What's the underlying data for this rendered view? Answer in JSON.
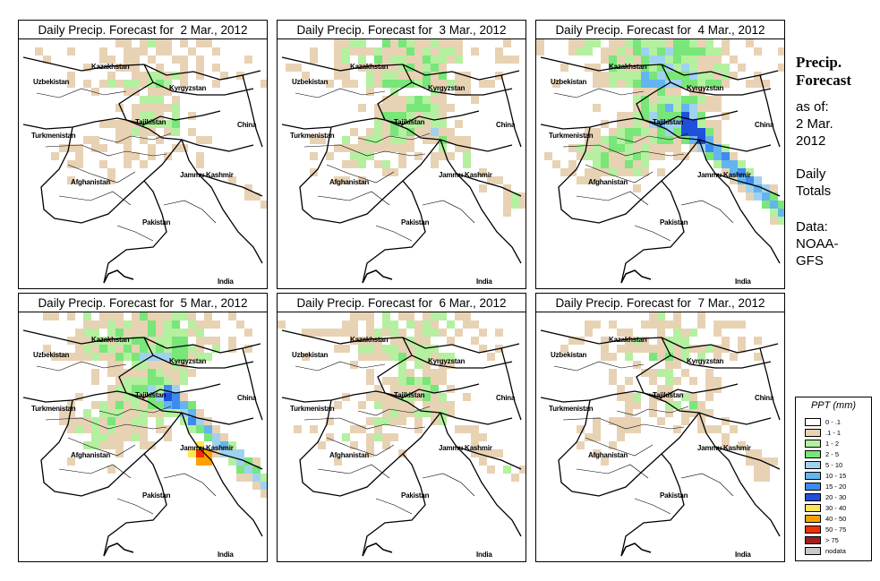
{
  "panels": [
    {
      "title": "Daily Precip. Forecast for  2 Mar., 2012",
      "intensity": 0.5,
      "kashmir_band": false,
      "hotspot": false
    },
    {
      "title": "Daily Precip. Forecast for  3 Mar., 2012",
      "intensity": 0.7,
      "kashmir_band": false,
      "hotspot": false
    },
    {
      "title": "Daily Precip. Forecast for  4 Mar., 2012",
      "intensity": 1.0,
      "kashmir_band": true,
      "hotspot": false
    },
    {
      "title": "Daily Precip. Forecast for  5 Mar., 2012",
      "intensity": 0.8,
      "kashmir_band": true,
      "hotspot": true
    },
    {
      "title": "Daily Precip. Forecast for  6 Mar., 2012",
      "intensity": 0.6,
      "kashmir_band": false,
      "hotspot": false
    },
    {
      "title": "Daily Precip. Forecast for  7 Mar., 2012",
      "intensity": 0.5,
      "kashmir_band": false,
      "hotspot": false
    }
  ],
  "map_labels": {
    "kazakhstan": "Kazakhstan",
    "uzbekistan": "Uzbekistan",
    "kyrgyzstan": "Kyrgyzstan",
    "tajikistan": "Tajikistan",
    "china": "China",
    "turkmenistan": "Turkmenistan",
    "jammu_kashmir": "Jammu Kashmir",
    "afghanistan": "Afghanistan",
    "pakistan": "Pakistan",
    "india": "India"
  },
  "sidebar": {
    "title_line1": "Precip.",
    "title_line2": "Forecast",
    "asof_line1": "as of:",
    "asof_line2": "2 Mar.",
    "asof_line3": "2012",
    "totals_line1": "Daily",
    "totals_line2": "Totals",
    "data_line1": "Data:",
    "data_line2": "NOAA-",
    "data_line3": "GFS"
  },
  "legend": {
    "title": "PPT (mm)",
    "entries": [
      {
        "label": "0 - .1",
        "color": "#ffffff"
      },
      {
        "label": ".1 - 1",
        "color": "#e8d2b4"
      },
      {
        "label": "1 - 2",
        "color": "#b4f0a0"
      },
      {
        "label": "2 - 5",
        "color": "#78e678"
      },
      {
        "label": "5 - 10",
        "color": "#a0d2f0"
      },
      {
        "label": "10 - 15",
        "color": "#64b4f0"
      },
      {
        "label": "15 - 20",
        "color": "#3c8cf0"
      },
      {
        "label": "20 - 30",
        "color": "#1e50dc"
      },
      {
        "label": "30 - 40",
        "color": "#ffe650"
      },
      {
        "label": "40 - 50",
        "color": "#ffa000"
      },
      {
        "label": "50 - 75",
        "color": "#f03200"
      },
      {
        "label": "> 75",
        "color": "#a01e1e"
      },
      {
        "label": "nodata",
        "color": "#c8c8c8"
      }
    ]
  }
}
